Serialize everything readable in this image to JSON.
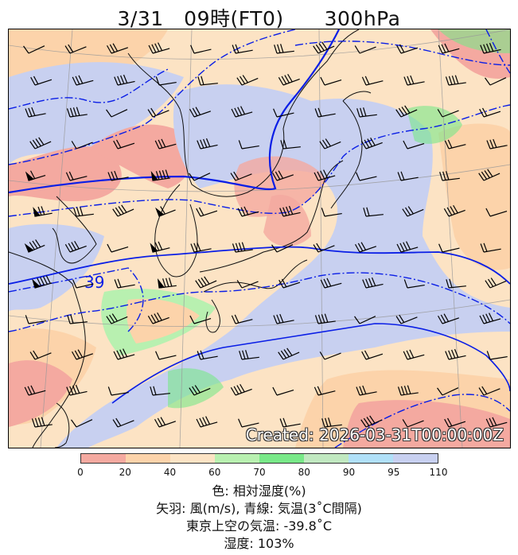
{
  "title": "3/31　09時(FT0)　　300hPa",
  "created": "Created: 2026-03-31T00:00:00Z",
  "contour_label": "39",
  "colorbar": {
    "ticks": [
      "0",
      "20",
      "40",
      "60",
      "70",
      "80",
      "90",
      "95",
      "110"
    ],
    "colors": [
      "#f4a9a0",
      "#fcd3aa",
      "#fce3c4",
      "#b8f0b0",
      "#78e888",
      "#c0e8c0",
      "#b0e0f8",
      "#c8d0f0"
    ]
  },
  "captions": {
    "line1": "色: 相対湿度(%)",
    "line2": "矢羽: 風(m/s), 青線: 気温(3˚C間隔)",
    "line3": "東京上空の気温: -39.8˚C",
    "line4": "湿度: 103%"
  }
}
